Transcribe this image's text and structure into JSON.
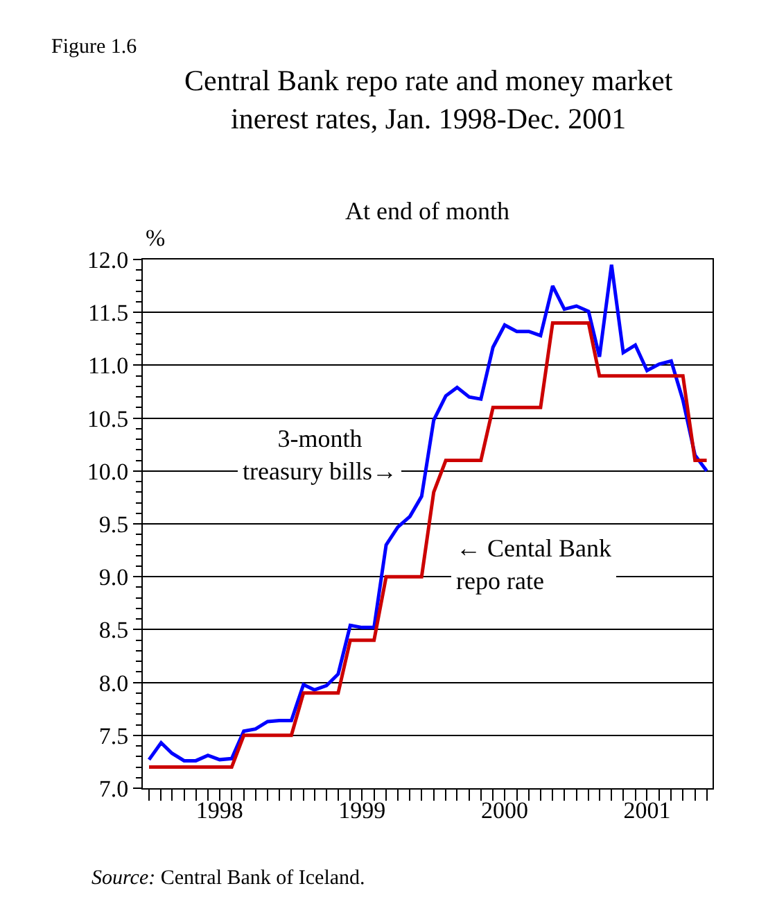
{
  "chart_data": {
    "type": "line",
    "title": "Central Bank repo rate and money market\ninerest rates, Jan. 1998-Dec. 2001",
    "subtitle": "At end of month",
    "ylabel": "%",
    "annotations": [
      "Figure 1.6",
      "3-month\ntreasury bills→",
      "← Cental Bank\nrepo rate",
      "Source: Central Bank of Iceland."
    ],
    "x": [
      "1998-01",
      "1998-02",
      "1998-03",
      "1998-04",
      "1998-05",
      "1998-06",
      "1998-07",
      "1998-08",
      "1998-09",
      "1998-10",
      "1998-11",
      "1998-12",
      "1999-01",
      "1999-02",
      "1999-03",
      "1999-04",
      "1999-05",
      "1999-06",
      "1999-07",
      "1999-08",
      "1999-09",
      "1999-10",
      "1999-11",
      "1999-12",
      "2000-01",
      "2000-02",
      "2000-03",
      "2000-04",
      "2000-05",
      "2000-06",
      "2000-07",
      "2000-08",
      "2000-09",
      "2000-10",
      "2000-11",
      "2000-12",
      "2001-01",
      "2001-02",
      "2001-03",
      "2001-04",
      "2001-05",
      "2001-06",
      "2001-07",
      "2001-08",
      "2001-09",
      "2001-10",
      "2001-11",
      "2001-12"
    ],
    "series": [
      {
        "color": "#0000ff",
        "values": [
          7.27,
          7.43,
          7.33,
          7.26,
          7.26,
          7.31,
          7.27,
          7.28,
          7.54,
          7.56,
          7.63,
          7.64,
          7.64,
          7.98,
          7.93,
          7.97,
          8.08,
          8.54,
          8.52,
          8.52,
          9.3,
          9.47,
          9.57,
          9.76,
          10.48,
          10.71,
          10.79,
          10.7,
          10.68,
          11.17,
          11.38,
          11.32,
          11.32,
          11.28,
          11.75,
          11.53,
          11.56,
          11.51,
          11.08,
          11.95,
          11.12,
          11.19,
          10.95,
          11.01,
          11.04,
          10.67,
          10.15,
          10.0
        ]
      },
      {
        "color": "#cc0000",
        "values": [
          7.2,
          7.2,
          7.2,
          7.2,
          7.2,
          7.2,
          7.2,
          7.2,
          7.5,
          7.5,
          7.5,
          7.5,
          7.5,
          7.9,
          7.9,
          7.9,
          7.9,
          8.4,
          8.4,
          8.4,
          9.0,
          9.0,
          9.0,
          9.0,
          9.8,
          10.1,
          10.1,
          10.1,
          10.1,
          10.6,
          10.6,
          10.6,
          10.6,
          10.6,
          11.4,
          11.4,
          11.4,
          11.4,
          10.9,
          10.9,
          10.9,
          10.9,
          10.9,
          10.9,
          10.9,
          10.9,
          10.1,
          10.1
        ]
      }
    ],
    "xlim": [
      "1997-12-16",
      "2001-12-16"
    ],
    "xticks": [
      {
        "value": "1998-07",
        "label": "1998"
      },
      {
        "value": "1999-07",
        "label": "1999"
      },
      {
        "value": "2000-07",
        "label": "2000"
      },
      {
        "value": "2001-07",
        "label": "2001"
      }
    ],
    "ylim": [
      7,
      12
    ],
    "yticks": [
      {
        "value": 7,
        "label": "7.0"
      },
      {
        "value": 7.5,
        "label": "7.5"
      },
      {
        "value": 8,
        "label": "8.0"
      },
      {
        "value": 8.5,
        "label": "8.5"
      },
      {
        "value": 9,
        "label": "9.0"
      },
      {
        "value": 9.5,
        "label": "9.5"
      },
      {
        "value": 10,
        "label": "10.0"
      },
      {
        "value": 10.5,
        "label": "10.5"
      },
      {
        "value": 11,
        "label": "11.0"
      },
      {
        "value": 11.5,
        "label": "11.5"
      },
      {
        "value": 12,
        "label": "12.0"
      }
    ],
    "grid": "y",
    "marker": "none",
    "line_style": "solid"
  }
}
